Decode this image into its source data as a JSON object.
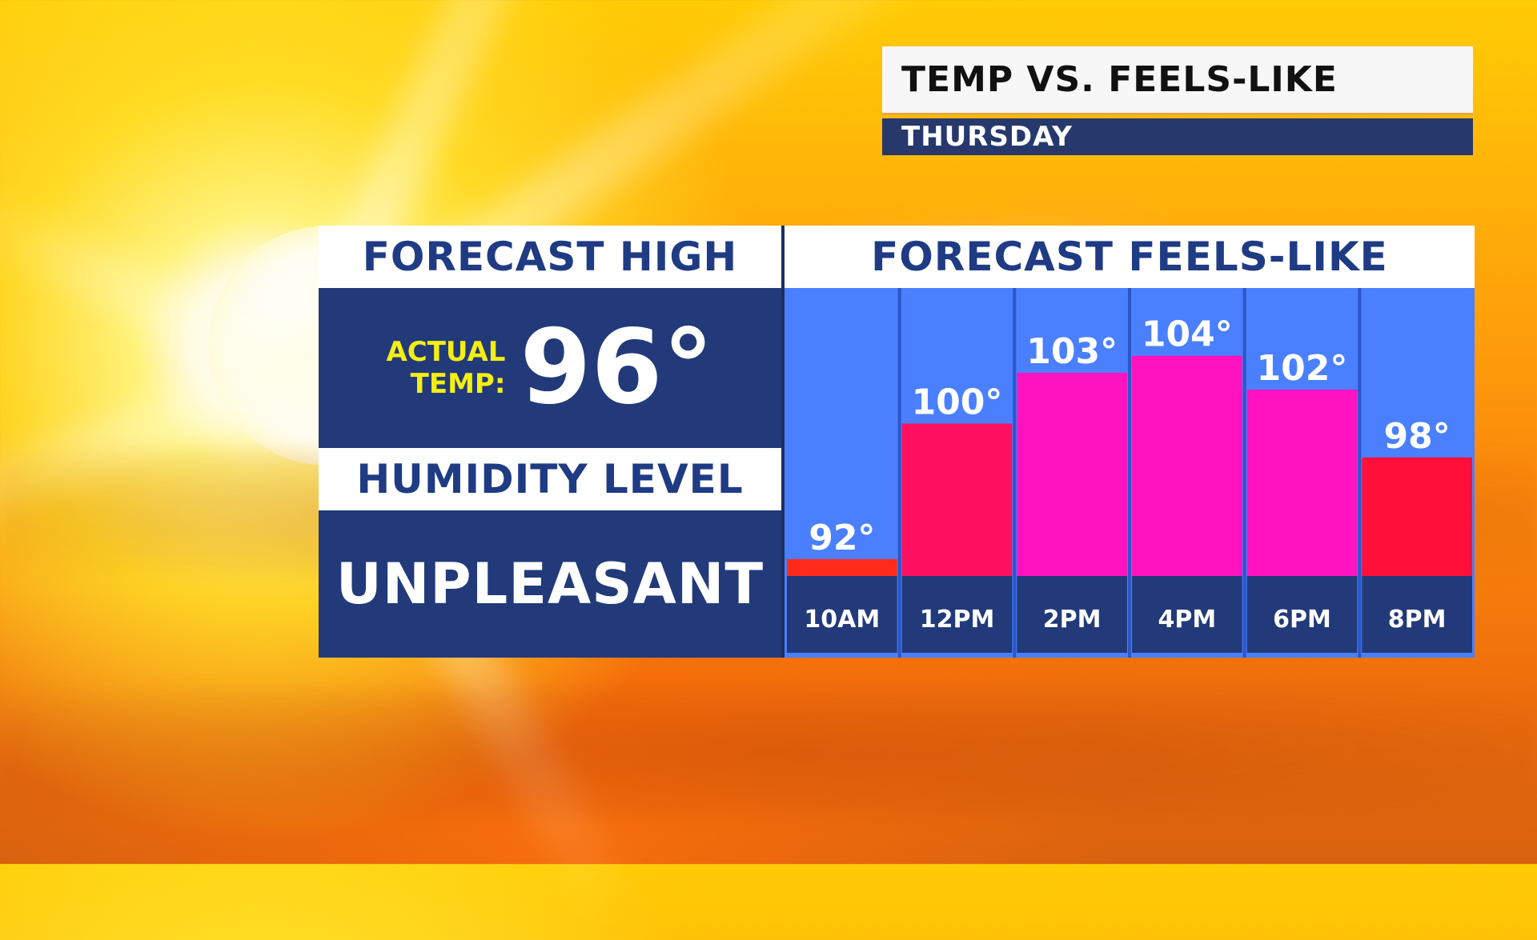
{
  "title": "TEMP VS. FEELS-LIKE",
  "subtitle": "THURSDAY",
  "forecast_high": {
    "header": "FORECAST HIGH",
    "label_line1": "ACTUAL",
    "label_line2": "TEMP:",
    "value": "96°"
  },
  "humidity": {
    "header": "HUMIDITY LEVEL",
    "value": "UNPLEASANT"
  },
  "colors": {
    "panel_blue": "#223a7a",
    "chart_bg": "#4a80ff",
    "label_yellow": "#f5ee13",
    "bar_red": "#ff2a1a",
    "bar_crimson": "#ff1060",
    "bar_magenta": "#ff12c0",
    "bar_red_pink": "#ff0f3a"
  },
  "chart_data": {
    "type": "bar",
    "title": "FORECAST FEELS-LIKE",
    "categories": [
      "10AM",
      "12PM",
      "2PM",
      "4PM",
      "6PM",
      "8PM"
    ],
    "values": [
      92,
      100,
      103,
      104,
      102,
      98
    ],
    "value_labels": [
      "92°",
      "100°",
      "103°",
      "104°",
      "102°",
      "98°"
    ],
    "bar_colors": [
      "#ff2a1a",
      "#ff1060",
      "#ff12c0",
      "#ff12c0",
      "#ff12c0",
      "#ff0f3a"
    ],
    "ylim": [
      91,
      108
    ],
    "grid": false,
    "legend": "none"
  }
}
